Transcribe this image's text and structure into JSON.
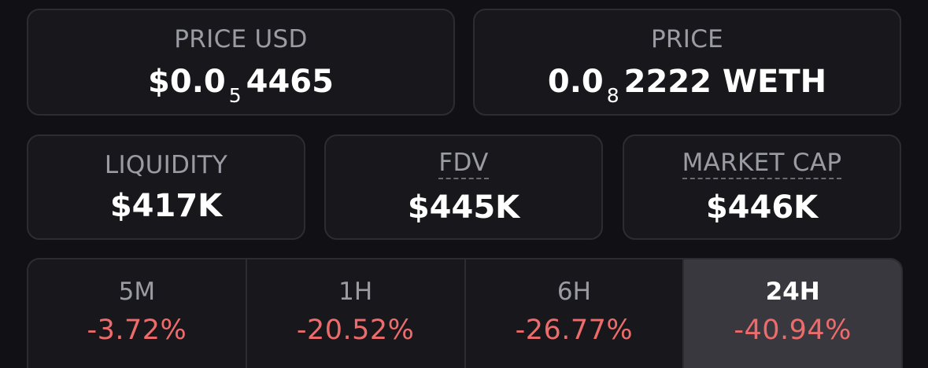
{
  "price_usd": {
    "label": "PRICE USD",
    "value_prefix": "$0.0",
    "value_subscript": "5",
    "value_digits": "4465"
  },
  "price": {
    "label": "PRICE",
    "value_prefix": "0.0",
    "value_subscript": "8",
    "value_digits": "2222 WETH"
  },
  "liquidity": {
    "label": "LIQUIDITY",
    "value": "$417K"
  },
  "fdv": {
    "label": "FDV",
    "value": "$445K"
  },
  "market_cap": {
    "label": "MARKET CAP",
    "value": "$446K"
  },
  "changes": [
    {
      "period": "5M",
      "change": "-3.72%"
    },
    {
      "period": "1H",
      "change": "-20.52%"
    },
    {
      "period": "6H",
      "change": "-26.77%"
    },
    {
      "period": "24H",
      "change": "-40.94%",
      "selected": true
    }
  ],
  "colors": {
    "negative": "#ee6b6b",
    "selected_tab_bg": "#38383e"
  }
}
